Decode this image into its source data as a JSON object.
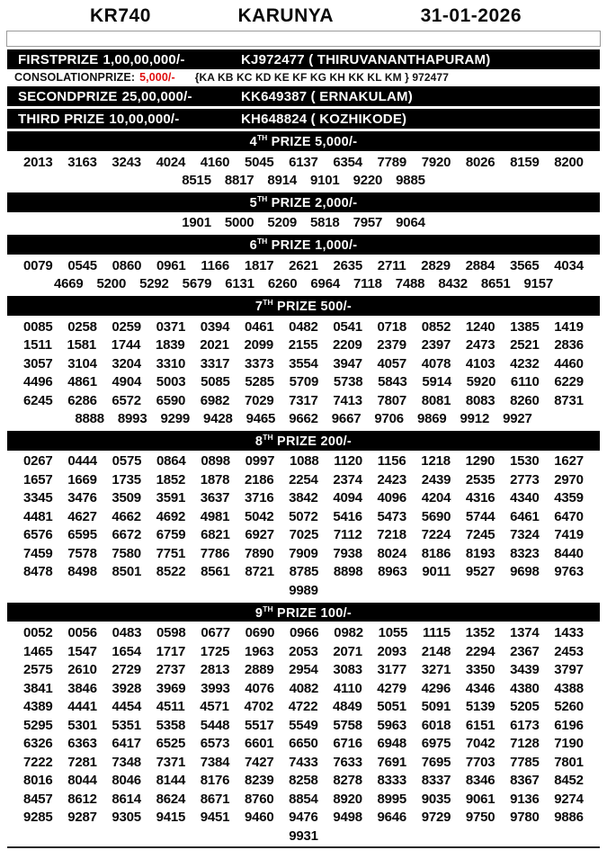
{
  "header": {
    "draw_code": "KR740",
    "lottery_name": "KARUNYA",
    "draw_date": "31-01-2026"
  },
  "colors": {
    "bar_bg": "#000000",
    "bar_text": "#ffffff",
    "consolation_amount_red": "#e01010"
  },
  "first_prize": {
    "label": "FIRSTPRIZE",
    "amount": "1,00,00,000/-",
    "winner": "KJ972477 ( THIRUVANANTHAPURAM)"
  },
  "consolation": {
    "label": "CONSOLATIONPRIZE:",
    "amount": "5,000/-",
    "series": "{KA KB KC KD KE KF KG KH KK KL KM } 972477"
  },
  "second_prize": {
    "label": "SECONDPRIZE",
    "amount": "25,00,000/-",
    "winner": "KK649387 ( ERNAKULAM)"
  },
  "third_prize": {
    "label": "THIRD PRIZE",
    "amount": "10,00,000/-",
    "winner": "KH648824 ( KOZHIKODE)"
  },
  "tiers": [
    {
      "rank": "4",
      "sup": "TH",
      "rest": " PRIZE 5,000/-",
      "rows": [
        [
          "2013",
          "3163",
          "3243",
          "4024",
          "4160",
          "5045",
          "6137",
          "6354",
          "7789",
          "7920",
          "8026",
          "8159",
          "8200"
        ],
        [
          "8515",
          "8817",
          "8914",
          "9101",
          "9220",
          "9885"
        ]
      ]
    },
    {
      "rank": "5",
      "sup": "TH",
      "rest": " PRIZE 2,000/-",
      "rows": [
        [
          "1901",
          "5000",
          "5209",
          "5818",
          "7957",
          "9064"
        ]
      ]
    },
    {
      "rank": "6",
      "sup": "TH",
      "rest": " PRIZE 1,000/-",
      "rows": [
        [
          "0079",
          "0545",
          "0860",
          "0961",
          "1166",
          "1817",
          "2621",
          "2635",
          "2711",
          "2829",
          "2884",
          "3565",
          "4034"
        ],
        [
          "4669",
          "5200",
          "5292",
          "5679",
          "6131",
          "6260",
          "6964",
          "7118",
          "7488",
          "8432",
          "8651",
          "9157"
        ]
      ]
    },
    {
      "rank": "7",
      "sup": "TH",
      "rest": " PRIZE 500/-",
      "rows": [
        [
          "0085",
          "0258",
          "0259",
          "0371",
          "0394",
          "0461",
          "0482",
          "0541",
          "0718",
          "0852",
          "1240",
          "1385",
          "1419"
        ],
        [
          "1511",
          "1581",
          "1744",
          "1839",
          "2021",
          "2099",
          "2155",
          "2209",
          "2379",
          "2397",
          "2473",
          "2521",
          "2836"
        ],
        [
          "3057",
          "3104",
          "3204",
          "3310",
          "3317",
          "3373",
          "3554",
          "3947",
          "4057",
          "4078",
          "4103",
          "4232",
          "4460"
        ],
        [
          "4496",
          "4861",
          "4904",
          "5003",
          "5085",
          "5285",
          "5709",
          "5738",
          "5843",
          "5914",
          "5920",
          "6110",
          "6229"
        ],
        [
          "6245",
          "6286",
          "6572",
          "6590",
          "6982",
          "7029",
          "7317",
          "7413",
          "7807",
          "8081",
          "8083",
          "8260",
          "8731"
        ],
        [
          "8888",
          "8993",
          "9299",
          "9428",
          "9465",
          "9662",
          "9667",
          "9706",
          "9869",
          "9912",
          "9927"
        ]
      ]
    },
    {
      "rank": "8",
      "sup": "TH",
      "rest": " PRIZE 200/-",
      "rows": [
        [
          "0267",
          "0444",
          "0575",
          "0864",
          "0898",
          "0997",
          "1088",
          "1120",
          "1156",
          "1218",
          "1290",
          "1530",
          "1627"
        ],
        [
          "1657",
          "1669",
          "1735",
          "1852",
          "1878",
          "2186",
          "2254",
          "2374",
          "2423",
          "2439",
          "2535",
          "2773",
          "2970"
        ],
        [
          "3345",
          "3476",
          "3509",
          "3591",
          "3637",
          "3716",
          "3842",
          "4094",
          "4096",
          "4204",
          "4316",
          "4340",
          "4359"
        ],
        [
          "4481",
          "4627",
          "4662",
          "4692",
          "4981",
          "5042",
          "5072",
          "5416",
          "5473",
          "5690",
          "5744",
          "6461",
          "6470"
        ],
        [
          "6576",
          "6595",
          "6672",
          "6759",
          "6821",
          "6927",
          "7025",
          "7112",
          "7218",
          "7224",
          "7245",
          "7324",
          "7419"
        ],
        [
          "7459",
          "7578",
          "7580",
          "7751",
          "7786",
          "7890",
          "7909",
          "7938",
          "8024",
          "8186",
          "8193",
          "8323",
          "8440"
        ],
        [
          "8478",
          "8498",
          "8501",
          "8522",
          "8561",
          "8721",
          "8785",
          "8898",
          "8963",
          "9011",
          "9527",
          "9698",
          "9763"
        ],
        [
          "9989"
        ]
      ]
    },
    {
      "rank": "9",
      "sup": "TH",
      "rest": " PRIZE 100/-",
      "rows": [
        [
          "0052",
          "0056",
          "0483",
          "0598",
          "0677",
          "0690",
          "0966",
          "0982",
          "1055",
          "1115",
          "1352",
          "1374",
          "1433"
        ],
        [
          "1465",
          "1547",
          "1654",
          "1717",
          "1725",
          "1963",
          "2053",
          "2071",
          "2093",
          "2148",
          "2294",
          "2367",
          "2453"
        ],
        [
          "2575",
          "2610",
          "2729",
          "2737",
          "2813",
          "2889",
          "2954",
          "3083",
          "3177",
          "3271",
          "3350",
          "3439",
          "3797"
        ],
        [
          "3841",
          "3846",
          "3928",
          "3969",
          "3993",
          "4076",
          "4082",
          "4110",
          "4279",
          "4296",
          "4346",
          "4380",
          "4388"
        ],
        [
          "4389",
          "4441",
          "4454",
          "4511",
          "4571",
          "4702",
          "4722",
          "4849",
          "5051",
          "5091",
          "5139",
          "5205",
          "5260"
        ],
        [
          "5295",
          "5301",
          "5351",
          "5358",
          "5448",
          "5517",
          "5549",
          "5758",
          "5963",
          "6018",
          "6151",
          "6173",
          "6196"
        ],
        [
          "6326",
          "6363",
          "6417",
          "6525",
          "6573",
          "6601",
          "6650",
          "6716",
          "6948",
          "6975",
          "7042",
          "7128",
          "7190"
        ],
        [
          "7222",
          "7281",
          "7348",
          "7371",
          "7384",
          "7427",
          "7433",
          "7633",
          "7691",
          "7695",
          "7703",
          "7785",
          "7801"
        ],
        [
          "8016",
          "8044",
          "8046",
          "8144",
          "8176",
          "8239",
          "8258",
          "8278",
          "8333",
          "8337",
          "8346",
          "8367",
          "8452"
        ],
        [
          "8457",
          "8612",
          "8614",
          "8624",
          "8671",
          "8760",
          "8854",
          "8920",
          "8995",
          "9035",
          "9061",
          "9136",
          "9274"
        ],
        [
          "9285",
          "9287",
          "9305",
          "9415",
          "9451",
          "9460",
          "9476",
          "9498",
          "9646",
          "9729",
          "9750",
          "9780",
          "9886"
        ],
        [
          "9931"
        ]
      ]
    }
  ]
}
